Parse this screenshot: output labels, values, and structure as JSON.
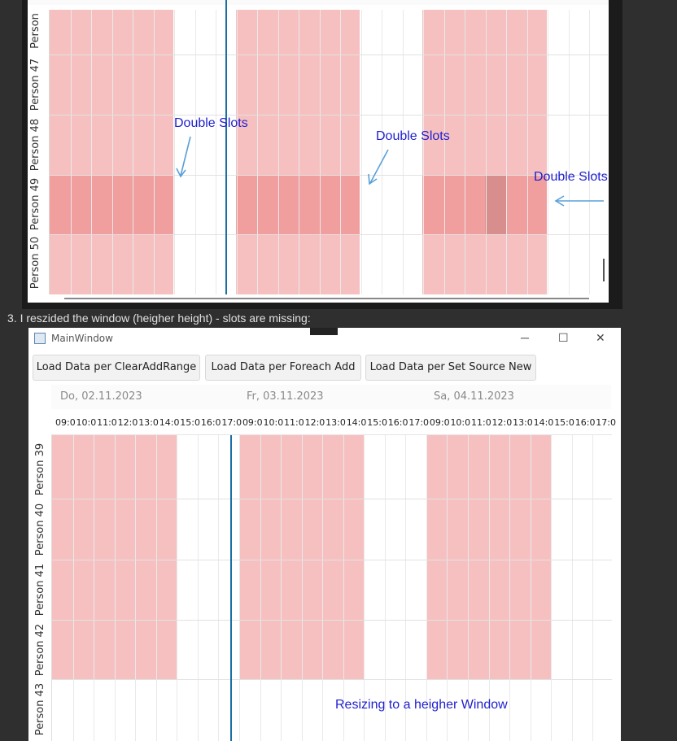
{
  "top_panel": {
    "rows": [
      "Person",
      "Person 47",
      "Person 48",
      "Person 49",
      "Person 50"
    ],
    "annotations": [
      "Double Slots",
      "Double Slots",
      "Double Slots"
    ]
  },
  "caption": "3. I reszided the window (heigher height) - slots are missing:",
  "window": {
    "title": "MainWindow",
    "buttons": {
      "clear_add_range": "Load Data per ClearAddRange",
      "foreach_add": "Load Data per Foreach Add",
      "set_source_new": "Load Data per Set Source New"
    },
    "days": [
      "Do, 02.11.2023",
      "Fr, 03.11.2023",
      "Sa, 04.11.2023"
    ],
    "hour_ticks": [
      "09:0",
      "10:0",
      "11:0",
      "12:0",
      "13:0",
      "14:0",
      "15:0",
      "16:0",
      "17:0"
    ],
    "rows": [
      "Person 39",
      "Person 40",
      "Person 41",
      "Person 42",
      "Person 43"
    ],
    "annotation": "Resizing to a heigher Window",
    "controls": {
      "minimize": "─",
      "maximize": "☐",
      "close": "✕"
    }
  },
  "colors": {
    "slot": "#f6c0c0",
    "slot_selected": "#f09e9e",
    "current_time_line": "#1a6fa3",
    "annotation_text": "#1f1fd0"
  }
}
